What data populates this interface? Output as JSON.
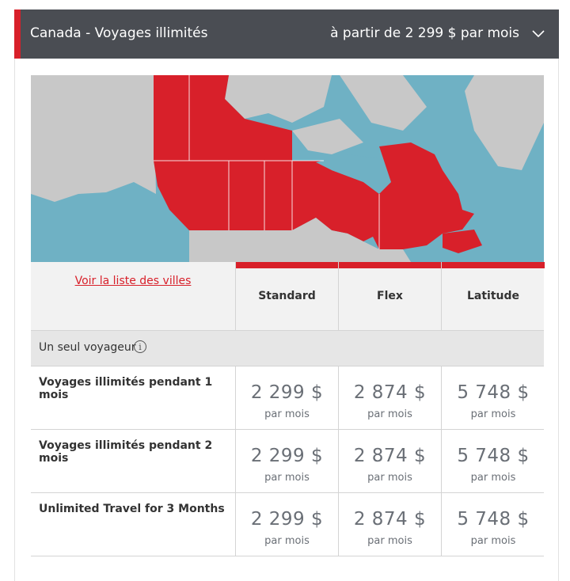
{
  "header": {
    "title": "Canada - Voyages illimités",
    "price_from": "à partir de 2 299 $ par mois",
    "chevron_icon": "chevron-down-icon"
  },
  "colors": {
    "accent": "#d8202a",
    "header_bg": "#4a4d53",
    "water": "#6fb1c4",
    "land": "#c8c8c8",
    "canada": "#d8202a"
  },
  "map": {
    "description_icon": "canada-map"
  },
  "table": {
    "city_list_link": "Voir la liste des villes",
    "columns": [
      "Standard",
      "Flex",
      "Latitude"
    ],
    "section_label": "Un seul voyageur",
    "section_info_icon": "info-icon",
    "rows": [
      {
        "name": "Voyages illimités pendant 1 mois",
        "prices": [
          "2 299 $",
          "2 874 $",
          "5 748 $"
        ],
        "per": "par mois"
      },
      {
        "name": "Voyages illimités pendant 2 mois",
        "prices": [
          "2 299 $",
          "2 874 $",
          "5 748 $"
        ],
        "per": "par mois"
      },
      {
        "name": "Unlimited Travel for 3 Months",
        "prices": [
          "2 299 $",
          "2 874 $",
          "5 748 $"
        ],
        "per": "par mois"
      }
    ]
  }
}
